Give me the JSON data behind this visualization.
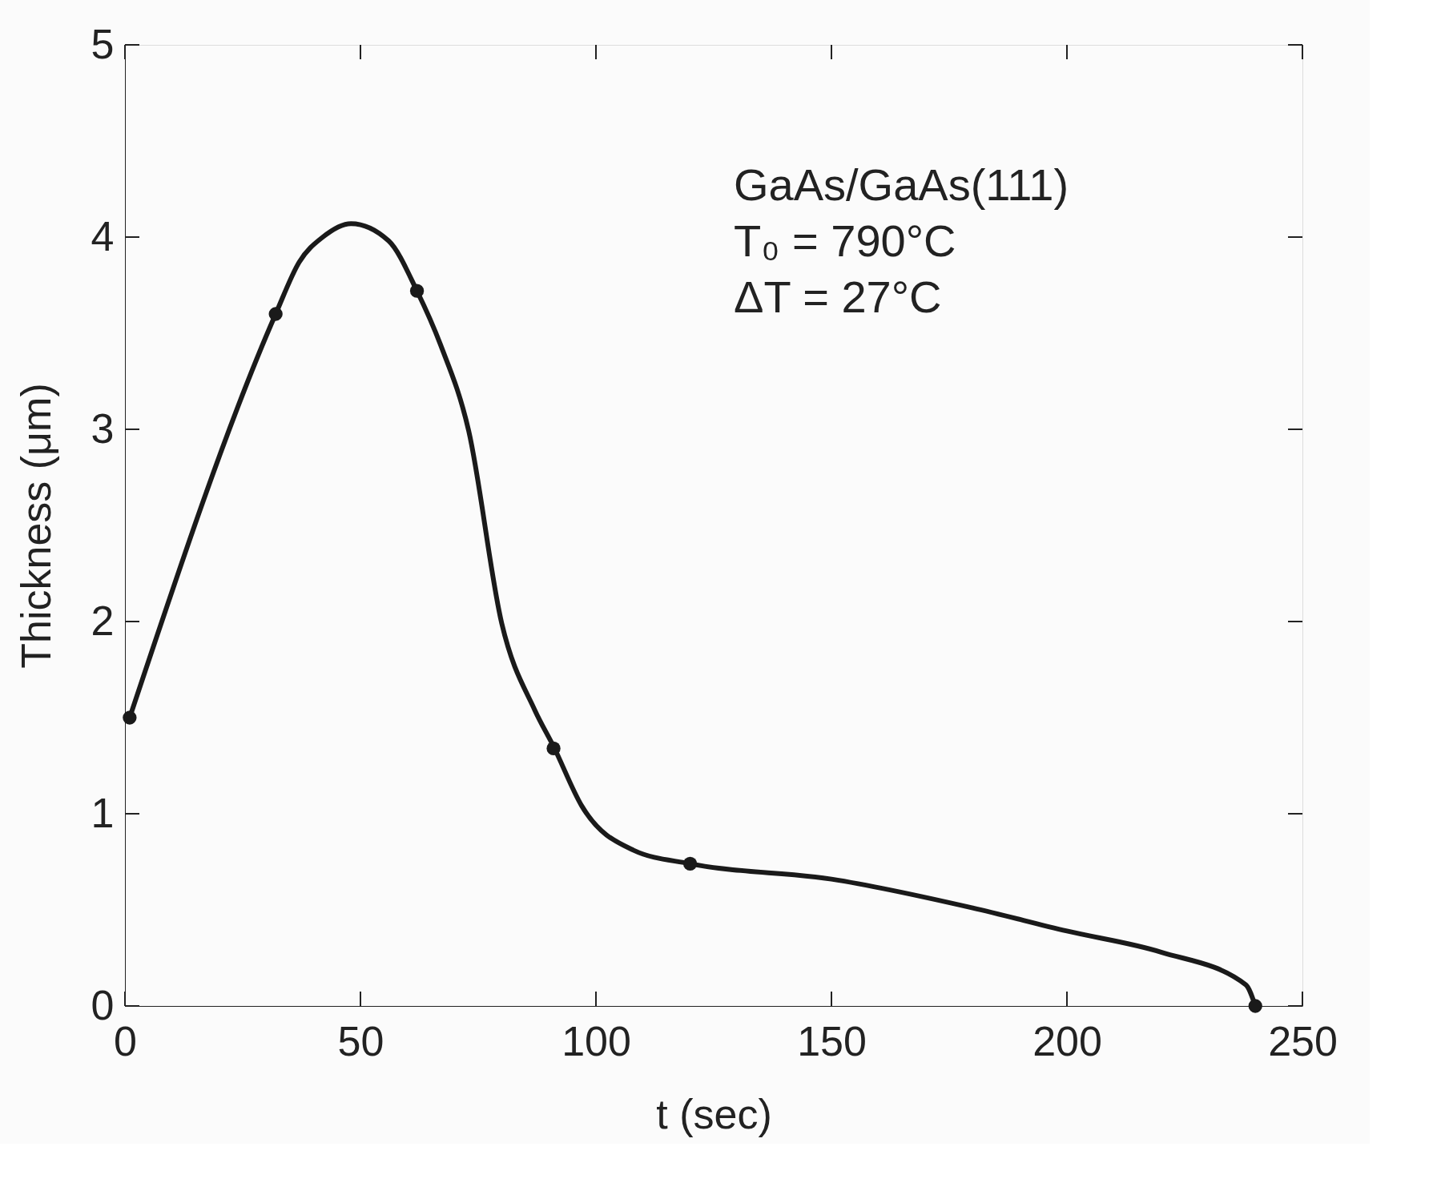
{
  "chart_data": {
    "type": "line",
    "xlabel": "t (sec)",
    "ylabel": "Thickness (μm)",
    "xlim": [
      0,
      250
    ],
    "ylim": [
      0,
      5
    ],
    "xticks": [
      0,
      50,
      100,
      150,
      200,
      250
    ],
    "yticks": [
      0,
      1,
      2,
      3,
      4,
      5
    ],
    "grid": false,
    "annotations": [
      "GaAs/GaAs(111)",
      "T₀ = 790°C",
      "ΔT = 27°C"
    ],
    "series": [
      {
        "color": "#1a1a1a",
        "marker": "none",
        "x": [
          1,
          32,
          37,
          42,
          48,
          56,
          62,
          67,
          73,
          80,
          87,
          91,
          97,
          108,
          120,
          150,
          180,
          200,
          220,
          238,
          240
        ],
        "values": [
          1.5,
          3.6,
          3.87,
          4.0,
          4.07,
          3.98,
          3.72,
          3.44,
          2.99,
          1.99,
          1.54,
          1.35,
          1.04,
          0.81,
          0.74,
          0.66,
          0.51,
          0.39,
          0.28,
          0.11,
          0
        ]
      },
      {
        "type": "scatter",
        "color": "#1a1a1a",
        "marker": "circle",
        "x": [
          1,
          32,
          62,
          91,
          120,
          240
        ],
        "values": [
          1.5,
          3.6,
          3.72,
          1.34,
          0.74,
          0
        ]
      }
    ]
  }
}
